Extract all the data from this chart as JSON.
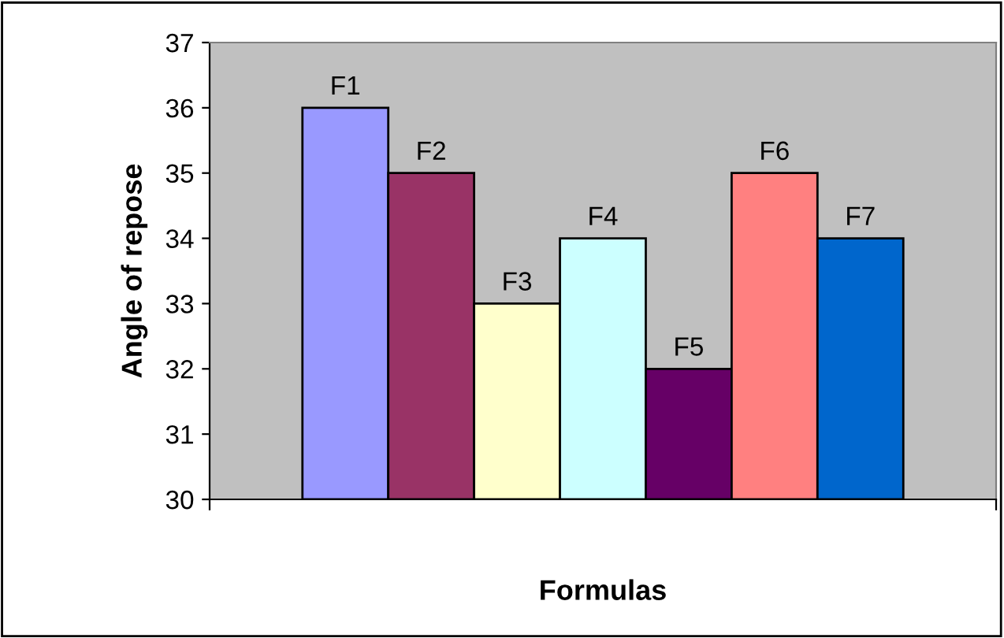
{
  "chart_data": {
    "type": "bar",
    "xlabel": "Formulas",
    "ylabel": "Angle of repose",
    "categories": [
      null
    ],
    "series": [
      {
        "name": "F1",
        "color": "#9999ff",
        "values": [
          36
        ]
      },
      {
        "name": "F2",
        "color": "#993366",
        "values": [
          35
        ]
      },
      {
        "name": "F3",
        "color": "#ffffcc",
        "values": [
          33
        ]
      },
      {
        "name": "F4",
        "color": "#ccffff",
        "values": [
          34
        ]
      },
      {
        "name": "F5",
        "color": "#660066",
        "values": [
          32
        ]
      },
      {
        "name": "F6",
        "color": "#ff8080",
        "values": [
          35
        ]
      },
      {
        "name": "F7",
        "color": "#0066cc",
        "values": [
          34
        ]
      }
    ],
    "ylim": [
      30,
      37
    ],
    "yticks": [
      30,
      31,
      32,
      33,
      34,
      35,
      36,
      37
    ],
    "grid": false,
    "legend": false
  }
}
